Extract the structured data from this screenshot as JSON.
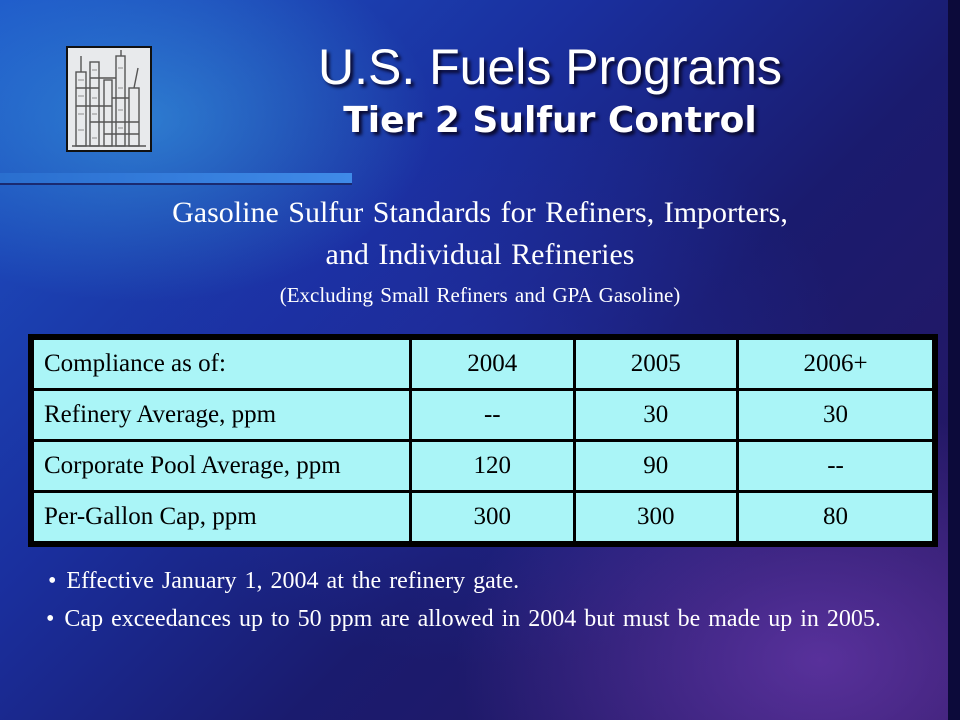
{
  "header": {
    "title": "U.S. Fuels Programs",
    "subtitle": "Tier 2 Sulfur Control"
  },
  "intro": {
    "line1": "Gasoline Sulfur Standards for Refiners, Importers,",
    "line2": "and Individual Refineries",
    "note": "(Excluding Small Refiners and GPA Gasoline)"
  },
  "table": {
    "headers": [
      "Compliance as of:",
      "2004",
      "2005",
      "2006+"
    ],
    "rows": [
      [
        "Refinery Average, ppm",
        "--",
        "30",
        "30"
      ],
      [
        "Corporate Pool Average, ppm",
        "120",
        "90",
        "--"
      ],
      [
        "Per-Gallon Cap, ppm",
        "300",
        "300",
        "80"
      ]
    ]
  },
  "bullets": [
    "Effective January 1, 2004 at the refinery gate.",
    "Cap exceedances up to 50 ppm are allowed in 2004 but must be made up in 2005."
  ],
  "bullet_symbol": "•",
  "colors": {
    "table_cell": "#aaf5f7",
    "text": "#ffffff"
  },
  "icons": {
    "logo": "refinery-icon"
  }
}
